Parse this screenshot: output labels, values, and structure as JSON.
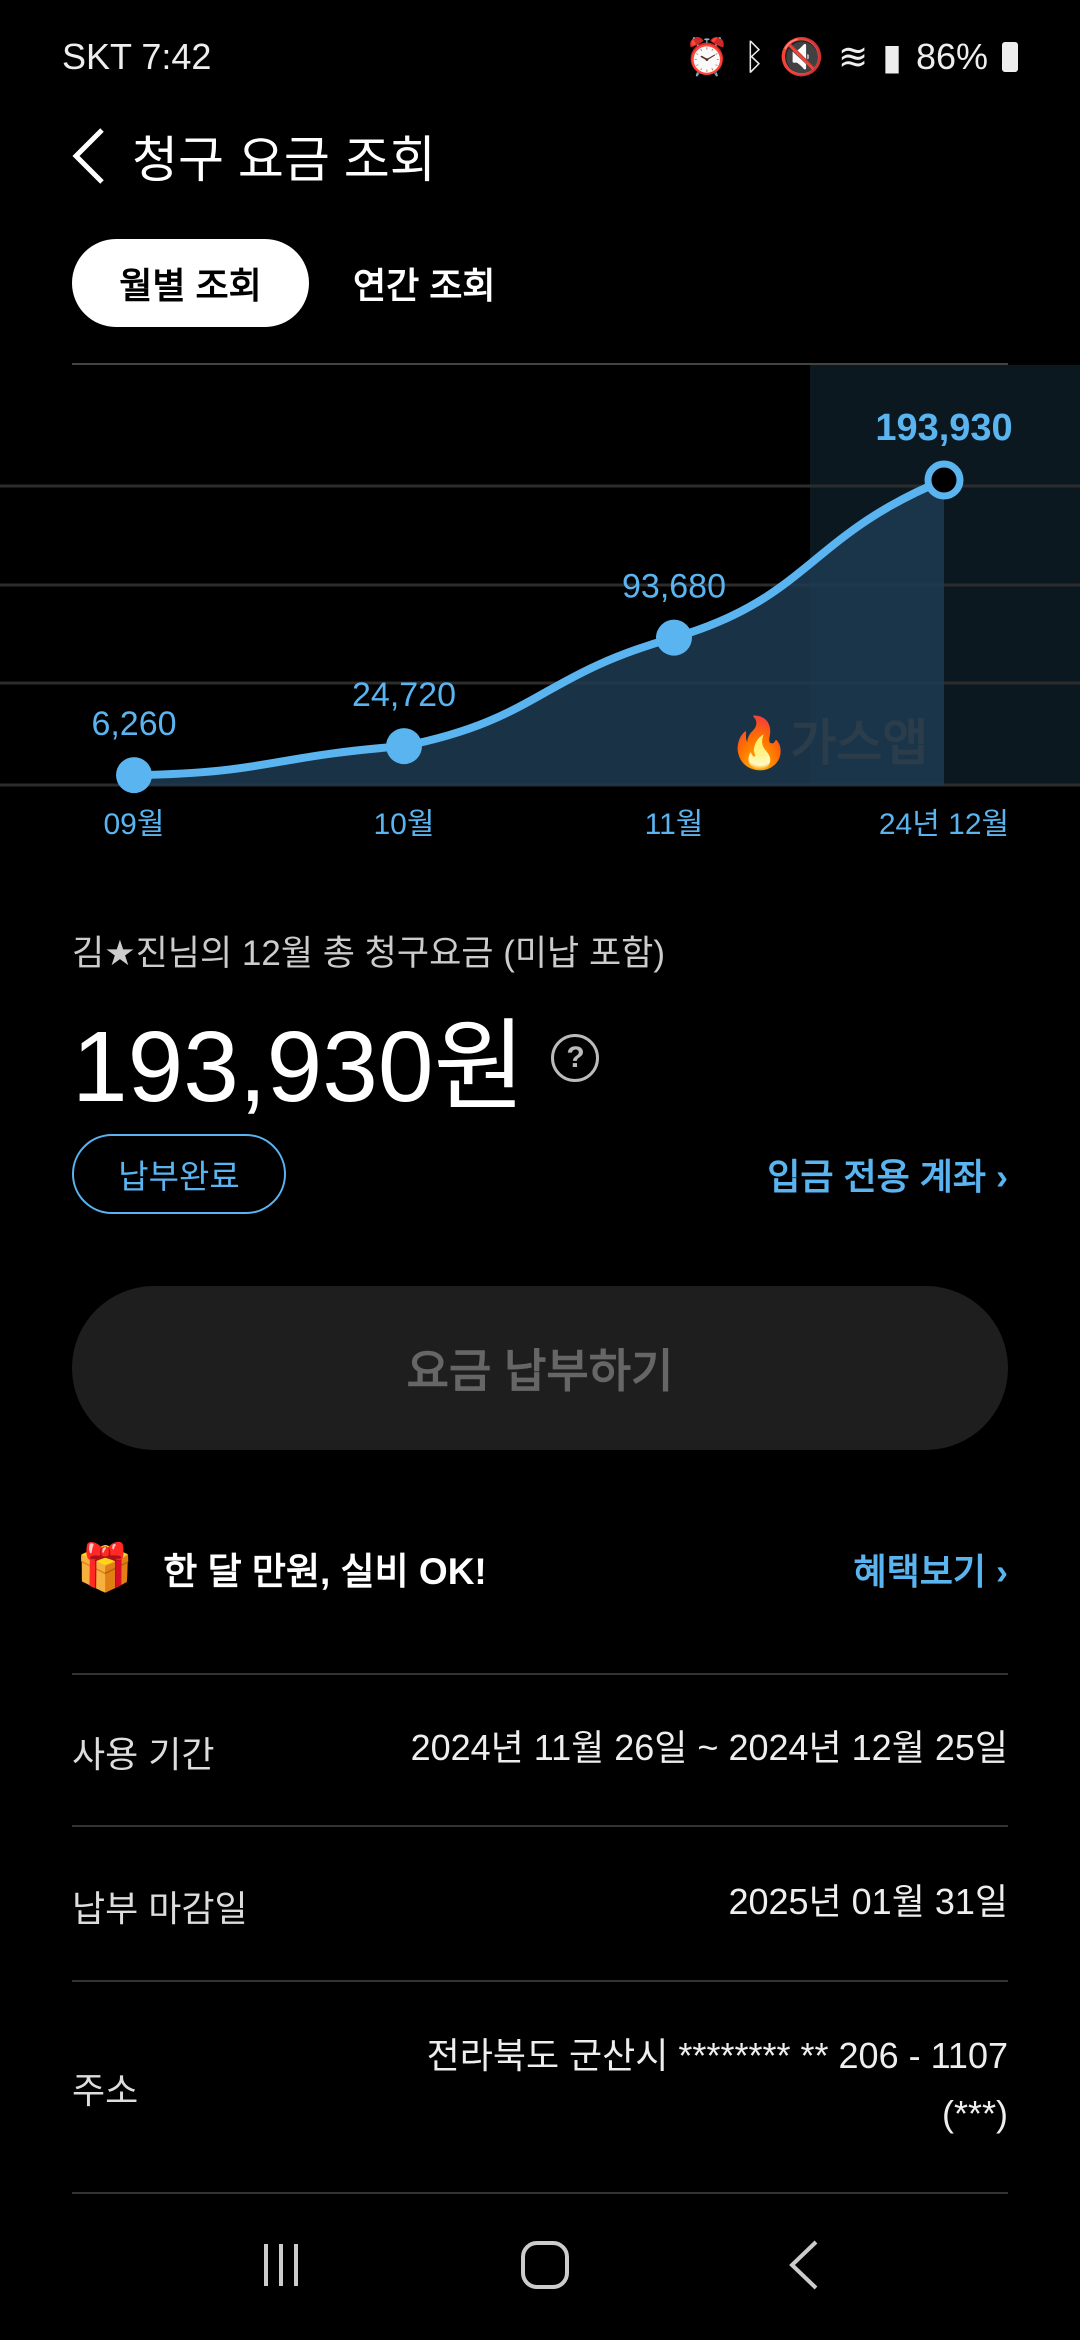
{
  "status": {
    "carrier_time": "SKT 7:42",
    "battery": "86%"
  },
  "header": {
    "title": "청구 요금 조회"
  },
  "tabs": [
    {
      "label": "월별 조회",
      "active": true
    },
    {
      "label": "연간 조회",
      "active": false
    }
  ],
  "chart_data": {
    "type": "area",
    "categories": [
      "09월",
      "10월",
      "11월",
      "24년 12월"
    ],
    "values": [
      6260,
      24720,
      93680,
      193930
    ],
    "value_labels": [
      "6,260",
      "24,720",
      "93,680",
      "193,930"
    ],
    "highlighted": "24년 12월",
    "watermark": "가스앱",
    "grid": true,
    "line_color": "#5ab4f0"
  },
  "summary": {
    "caption": "김★진님의 12월 총 청구요금 (미납 포함)",
    "amount": "193,930원",
    "help": "?",
    "status_badge": "납부완료",
    "account_link": "입금 전용 계좌"
  },
  "pay_button": "요금 납부하기",
  "promo": {
    "text": "한 달 만원, 실비 OK!",
    "link": "혜택보기"
  },
  "details": [
    {
      "label": "사용 기간",
      "value": "2024년 11월 26일 ~ 2024년 12월 25일"
    },
    {
      "label": "납부 마감일",
      "value": "2025년 01월 31일"
    },
    {
      "label": "주소",
      "value": "전라북도 군산시 ******** ** 206 - 1107",
      "value2": "(***)"
    }
  ],
  "colors": {
    "accent": "#5ab4f0",
    "background": "#000000"
  }
}
